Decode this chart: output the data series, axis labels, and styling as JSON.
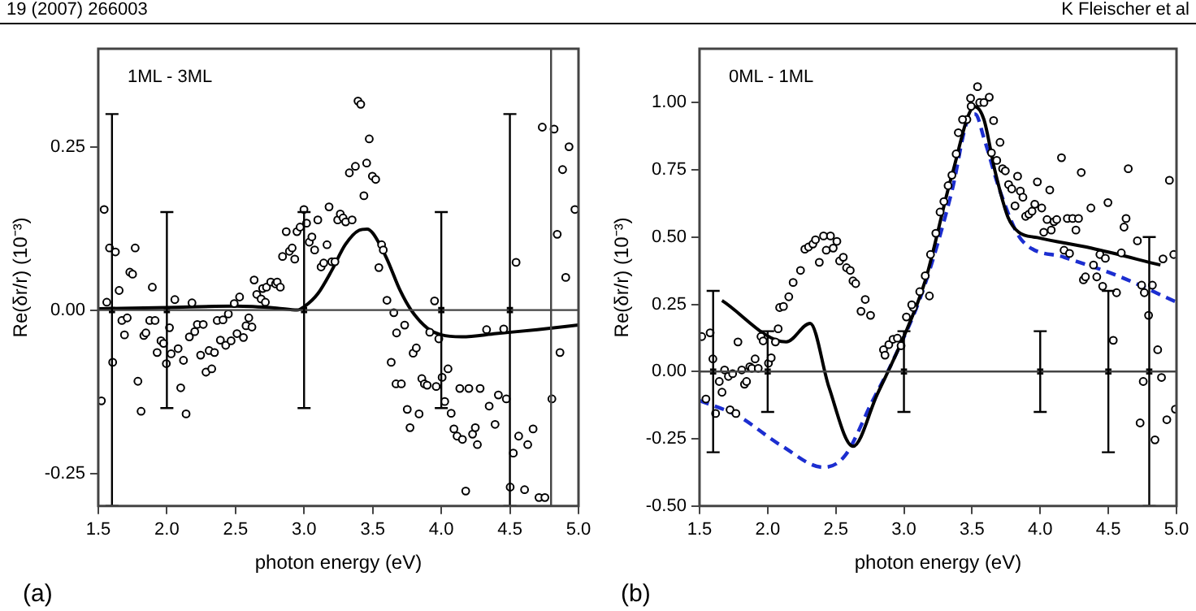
{
  "chart_data": [
    {
      "type": "scatter",
      "xlabel": "photon energy (eV)",
      "ylabel": "Re(δr/r) (10⁻³)",
      "xlim": [
        1.5,
        5.0
      ],
      "ylim": [
        -0.3,
        0.4
      ],
      "xticks": [
        {
          "value": 1.5,
          "label": "1.5"
        },
        {
          "value": 2.0,
          "label": "2.0"
        },
        {
          "value": 2.5,
          "label": "2.5"
        },
        {
          "value": 3.0,
          "label": "3.0"
        },
        {
          "value": 3.5,
          "label": "3.5"
        },
        {
          "value": 4.0,
          "label": "4.0"
        },
        {
          "value": 4.5,
          "label": "4.5"
        },
        {
          "value": 5.0,
          "label": "5.0"
        }
      ],
      "yticks": [
        {
          "value": -0.25,
          "label": "-0.25"
        },
        {
          "value": 0,
          "label": "0.00"
        },
        {
          "value": 0.25,
          "label": "0.25"
        }
      ],
      "grid": false,
      "legend": false,
      "annotations": [
        "1ML - 3ML",
        "(a)",
        "19 (2007) 266003"
      ],
      "ref_lines": [
        {
          "axis": "y",
          "value": 0,
          "label": null
        },
        {
          "axis": "x",
          "value": 4.8,
          "label": null
        }
      ],
      "series": [
        {
          "type": "scatter",
          "marker": "circle",
          "color": "#000000",
          "x": [
            1.543,
            1.562,
            1.582,
            1.625,
            1.652,
            1.73,
            1.75,
            1.769,
            1.894,
            2.058,
            2.183,
            2.491,
            2.53,
            2.636,
            2.655,
            2.687,
            2.698,
            2.718,
            2.726,
            2.757,
            2.792,
            2.804,
            2.827,
            2.843,
            2.87,
            2.893,
            2.913,
            2.932,
            2.948,
            2.971,
            2.999,
            3.018,
            3.038,
            3.057,
            3.077,
            3.1,
            3.124,
            3.143,
            3.167,
            3.182,
            3.202,
            3.225,
            3.245,
            3.264,
            3.284,
            3.303,
            3.33,
            3.35,
            3.374,
            3.393,
            3.413,
            3.436,
            3.456,
            3.475,
            3.498,
            3.522,
            3.545,
            3.565,
            3.577,
            3.604,
            3.951,
            4.545,
            4.736,
            4.822,
            4.845,
            4.884,
            4.907,
            4.931,
            4.974,
            1.523,
            1.605,
            1.672,
            1.691,
            1.711,
            1.789,
            1.812,
            1.832,
            1.847,
            1.875,
            1.914,
            1.929,
            1.957,
            1.976,
            1.996,
            2.019,
            2.031,
            2.082,
            2.101,
            2.121,
            2.14,
            2.164,
            2.203,
            2.222,
            2.246,
            2.265,
            2.285,
            2.308,
            2.327,
            2.347,
            2.367,
            2.39,
            2.409,
            2.429,
            2.448,
            2.468,
            2.511,
            2.558,
            2.577,
            2.597,
            2.62,
            3.635,
            3.654,
            3.674,
            3.67,
            3.709,
            3.733,
            3.752,
            3.772,
            3.795,
            3.818,
            3.838,
            3.858,
            3.877,
            3.897,
            3.916,
            3.963,
            3.982,
            4.006,
            4.025,
            4.049,
            4.072,
            4.092,
            4.115,
            4.135,
            4.154,
            4.178,
            4.201,
            4.228,
            4.248,
            4.263,
            4.283,
            4.33,
            4.349,
            4.392,
            4.416,
            4.455,
            4.474,
            4.502,
            4.525,
            4.564,
            4.607,
            4.63,
            4.669,
            4.712,
            4.755,
            4.806,
            4.865
          ],
          "values": [
            0.154,
            0.012,
            0.095,
            0.089,
            0.03,
            0.058,
            0.055,
            0.095,
            0.035,
            0.016,
            0.011,
            0.01,
            0.02,
            0.046,
            0.024,
            0.017,
            0.033,
            0.012,
            0.035,
            0.043,
            0.04,
            0.043,
            0.035,
            0.082,
            0.12,
            0.09,
            0.095,
            0.078,
            0.12,
            0.127,
            0.154,
            0.133,
            0.104,
            0.112,
            0.092,
            0.138,
            0.066,
            0.072,
            0.1,
            0.158,
            0.074,
            0.074,
            0.138,
            0.147,
            0.141,
            0.135,
            0.21,
            0.138,
            0.22,
            0.32,
            0.315,
            0.175,
            0.225,
            0.262,
            0.205,
            0.2,
            0.065,
            0.1,
            0.092,
            0.015,
            0.014,
            0.073,
            0.28,
            0.277,
            0.116,
            0.215,
            0.05,
            0.25,
            0.154,
            -0.139,
            -0.08,
            -0.016,
            -0.038,
            -0.012,
            -0.109,
            -0.155,
            -0.039,
            -0.035,
            -0.016,
            -0.016,
            -0.065,
            -0.047,
            -0.051,
            -0.082,
            -0.027,
            -0.067,
            -0.059,
            -0.119,
            -0.077,
            -0.159,
            -0.041,
            -0.033,
            -0.022,
            -0.069,
            -0.022,
            -0.095,
            -0.062,
            -0.09,
            -0.065,
            -0.016,
            -0.046,
            -0.015,
            -0.054,
            -0.006,
            -0.047,
            -0.036,
            -0.042,
            -0.024,
            -0.012,
            -0.026,
            -0.08,
            -0.004,
            -0.035,
            -0.113,
            -0.113,
            -0.023,
            -0.152,
            -0.18,
            -0.066,
            -0.058,
            -0.159,
            -0.105,
            -0.113,
            -0.115,
            -0.034,
            -0.117,
            -0.044,
            -0.103,
            -0.14,
            -0.09,
            -0.158,
            -0.182,
            -0.193,
            -0.12,
            -0.198,
            -0.277,
            -0.12,
            -0.19,
            -0.18,
            -0.206,
            -0.12,
            -0.03,
            -0.147,
            -0.175,
            -0.13,
            -0.029,
            -0.136,
            -0.271,
            -0.219,
            -0.193,
            -0.275,
            -0.206,
            -0.182,
            -0.287,
            -0.287,
            -0.136,
            -0.065
          ]
        },
        {
          "type": "line",
          "marker": "none",
          "line_style": "solid",
          "color": "#000000",
          "x": [
            1.5,
            2.0,
            2.5,
            2.8,
            2.95,
            3.0,
            3.1,
            3.2,
            3.3,
            3.4,
            3.46,
            3.5,
            3.6,
            3.7,
            3.78,
            3.9,
            4.0,
            4.15,
            4.4,
            4.7,
            5.0
          ],
          "values": [
            0.002,
            0.004,
            0.006,
            0.003,
            0.0,
            0.005,
            0.025,
            0.06,
            0.1,
            0.122,
            0.124,
            0.118,
            0.08,
            0.03,
            0,
            -0.028,
            -0.038,
            -0.041,
            -0.036,
            -0.03,
            -0.023
          ]
        },
        {
          "type": "scatter",
          "marker": "square",
          "color": "#000000",
          "x": [
            1.6,
            2.0,
            3.0,
            4.0,
            4.5
          ],
          "values": [
            0,
            0,
            0,
            0,
            0
          ],
          "errors": [
            0.3,
            0.15,
            0.15,
            0.15,
            0.3
          ]
        }
      ]
    },
    {
      "type": "scatter",
      "xlabel": "photon energy (eV)",
      "ylabel": "Re(δr/r) (10⁻³)",
      "xlim": [
        1.5,
        5.0
      ],
      "ylim": [
        -0.5,
        1.2
      ],
      "xticks": [
        {
          "value": 1.5,
          "label": "1.5"
        },
        {
          "value": 2.0,
          "label": "2.0"
        },
        {
          "value": 2.5,
          "label": "2.5"
        },
        {
          "value": 3.0,
          "label": "3.0"
        },
        {
          "value": 3.5,
          "label": "3.5"
        },
        {
          "value": 4.0,
          "label": "4.0"
        },
        {
          "value": 4.5,
          "label": "4.5"
        },
        {
          "value": 5.0,
          "label": "5.0"
        }
      ],
      "yticks": [
        {
          "value": -0.5,
          "label": "-0.50"
        },
        {
          "value": -0.25,
          "label": "-0.25"
        },
        {
          "value": 0,
          "label": "0.00"
        },
        {
          "value": 0.25,
          "label": "0.25"
        },
        {
          "value": 0.5,
          "label": "0.50"
        },
        {
          "value": 0.75,
          "label": "0.75"
        },
        {
          "value": 1.0,
          "label": "1.00"
        }
      ],
      "grid": false,
      "legend": false,
      "annotations": [
        "0ML - 1ML",
        "(b)",
        "K Fleischer et al"
      ],
      "ref_lines": [
        {
          "axis": "y",
          "value": 0,
          "label": null
        }
      ],
      "series": [
        {
          "type": "scatter",
          "marker": "circle",
          "color": "#000000",
          "x": [
            3.54,
            3.489,
            3.556,
            3.587,
            3.626,
            3.462,
            3.658,
            3.705,
            3.642,
            3.681,
            3.724,
            3.744,
            3.768,
            3.791,
            3.834,
            3.815,
            3.854,
            3.873,
            3.893,
            3.917,
            3.94,
            3.96,
            3.979,
            4.011,
            4.026,
            4.05,
            4.07,
            4.081,
            4.101,
            4.121,
            4.156,
            4.175,
            4.199,
            4.215,
            4.238,
            4.262,
            4.281,
            4.301,
            4.317,
            4.332,
            4.372,
            4.391,
            4.415,
            4.438,
            4.458,
            4.478,
            4.497,
            4.56,
            4.595,
            4.615,
            4.63,
            4.646,
            4.713,
            4.744,
            4.764,
            4.823,
            4.901,
            4.948,
            4.98,
            3.069,
            3.116,
            3.156,
            3.195,
            3.234,
            3.265,
            3.293,
            3.324,
            3.352,
            3.383,
            3.399,
            3.43,
            3.493,
            2.088,
            2.116,
            2.155,
            2.187,
            2.241,
            2.273,
            2.3,
            2.332,
            2.351,
            2.379,
            2.41,
            2.43,
            2.461,
            2.481,
            2.508,
            2.528,
            2.555,
            2.579,
            2.606,
            2.626,
            2.646,
            2.685,
            2.716,
            2.755,
            1.516,
            1.547,
            1.578,
            1.598,
            1.618,
            1.645,
            1.665,
            1.684,
            1.712,
            1.724,
            1.743,
            1.767,
            1.782,
            1.81,
            1.83,
            1.845,
            1.869,
            1.884,
            1.908,
            1.931,
            1.951,
            1.967,
            2.006,
            2.026,
            2.057,
            2.077,
            2.85,
            2.861,
            2.889,
            2.92,
            2.952,
            2.979,
            3.018,
            3.057,
            3.187,
            4.536,
            4.733,
            4.756,
            4.842,
            4.862,
            4.89,
            4.929,
            4.992,
            4.795
          ],
          "values": [
            1.059,
            1.016,
            1.0,
            1.0,
            1.02,
            0.937,
            0.933,
            0.852,
            0.813,
            0.785,
            0.754,
            0.746,
            0.695,
            0.679,
            0.726,
            0.616,
            0.671,
            0.648,
            0.577,
            0.585,
            0.596,
            0.622,
            0.705,
            0.608,
            0.518,
            0.565,
            0.675,
            0.526,
            0.557,
            0.565,
            0.795,
            0.451,
            0.569,
            0.439,
            0.569,
            0.526,
            0.569,
            0.74,
            0.341,
            0.352,
            0.608,
            0.396,
            0.352,
            0.435,
            0.317,
            0.421,
            0.628,
            0.293,
            0.441,
            0.537,
            0.569,
            0.754,
            0.486,
            0.321,
            0.293,
            0.321,
            0.419,
            0.711,
            0.435,
            0.238,
            0.297,
            0.356,
            0.435,
            0.514,
            0.593,
            0.632,
            0.691,
            0.73,
            0.809,
            0.888,
            0.937,
            0.986,
            0.238,
            0.242,
            0.278,
            0.331,
            0.376,
            0.455,
            0.463,
            0.474,
            0.49,
            0.406,
            0.504,
            0.451,
            0.504,
            0.459,
            0.484,
            0.411,
            0.425,
            0.386,
            0.376,
            0.337,
            0.327,
            0.224,
            0.268,
            0.209,
            0.13,
            -0.102,
            0.144,
            0.047,
            -0.156,
            -0.037,
            -0.077,
            0.006,
            -0.018,
            -0.142,
            -0.008,
            -0.156,
            0.11,
            0.006,
            -0.047,
            -0.037,
            0.018,
            0.012,
            0.047,
            0.012,
            0.13,
            0.114,
            0.031,
            0.051,
            0.11,
            0.159,
            0.081,
            0.061,
            0.1,
            0.12,
            0.124,
            0.096,
            0.203,
            0.248,
            0.281,
            0.116,
            -0.191,
            -0.037,
            -0.254,
            0.081,
            -0.022,
            -0.179,
            -0.14,
            0.209
          ]
        },
        {
          "type": "line",
          "marker": "none",
          "line_style": "solid",
          "color": "#000000",
          "x": [
            1.665,
            2.136,
            2.312,
            2.449,
            2.626,
            2.802,
            2.991,
            3.156,
            3.352,
            3.52,
            3.587,
            3.666,
            3.764,
            3.842,
            3.979,
            4.372,
            4.882
          ],
          "values": [
            0.264,
            0.11,
            0.179,
            -0.057,
            -0.278,
            -0.087,
            0.12,
            0.337,
            0.73,
            0.985,
            0.937,
            0.75,
            0.573,
            0.518,
            0.498,
            0.459,
            0.396
          ]
        },
        {
          "type": "line",
          "marker": "none",
          "line_style": "dashed",
          "color": "#1c2ed0",
          "x": [
            1.5,
            1.782,
            2.096,
            2.41,
            2.567,
            2.763,
            2.92,
            3.136,
            3.352,
            3.469,
            3.524,
            3.587,
            3.705,
            3.862,
            4.175,
            4.568,
            5.0
          ],
          "values": [
            -0.108,
            -0.165,
            -0.274,
            -0.356,
            -0.313,
            -0.116,
            0.041,
            0.297,
            0.671,
            0.937,
            0.957,
            0.868,
            0.671,
            0.49,
            0.425,
            0.356,
            0.258
          ]
        },
        {
          "type": "scatter",
          "marker": "square",
          "color": "#000000",
          "x": [
            1.6,
            2.0,
            3.0,
            4.0,
            4.5,
            4.8
          ],
          "values": [
            0,
            0,
            0,
            0,
            0,
            0
          ],
          "errors": [
            0.3,
            0.15,
            0.15,
            0.15,
            0.3,
            0.5
          ]
        }
      ]
    }
  ]
}
